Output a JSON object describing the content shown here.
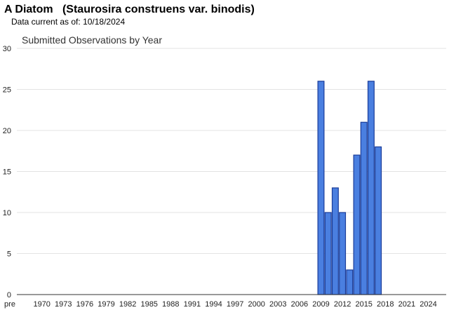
{
  "header": {
    "title": "A Diatom   (Staurosira construens var. binodis)",
    "date_label": "Data current as of:",
    "date_value": "10/18/2024"
  },
  "chart_data": {
    "type": "bar",
    "title": "Submitted Observations by Year",
    "xlabel": "",
    "ylabel": "",
    "ylim": [
      0,
      30
    ],
    "yticks": [
      0,
      5,
      10,
      15,
      20,
      25,
      30
    ],
    "grid": true,
    "legend": "none",
    "bar_color": "#4a7fe0",
    "bar_edge_color": "#1a3c99",
    "categories": [
      "pre",
      "1970",
      "1973",
      "1976",
      "1979",
      "1982",
      "1985",
      "1988",
      "1991",
      "1994",
      "1997",
      "2000",
      "2003",
      "2006",
      "2009",
      "2012",
      "2015",
      "2018",
      "2021",
      "2024"
    ],
    "x_start_year": 1967,
    "x_end_year": 2026,
    "bars": [
      {
        "year": 2009,
        "value": 26
      },
      {
        "year": 2010,
        "value": 10
      },
      {
        "year": 2011,
        "value": 13
      },
      {
        "year": 2012,
        "value": 10
      },
      {
        "year": 2013,
        "value": 3
      },
      {
        "year": 2014,
        "value": 17
      },
      {
        "year": 2015,
        "value": 21
      },
      {
        "year": 2016,
        "value": 26
      },
      {
        "year": 2017,
        "value": 18
      }
    ]
  }
}
